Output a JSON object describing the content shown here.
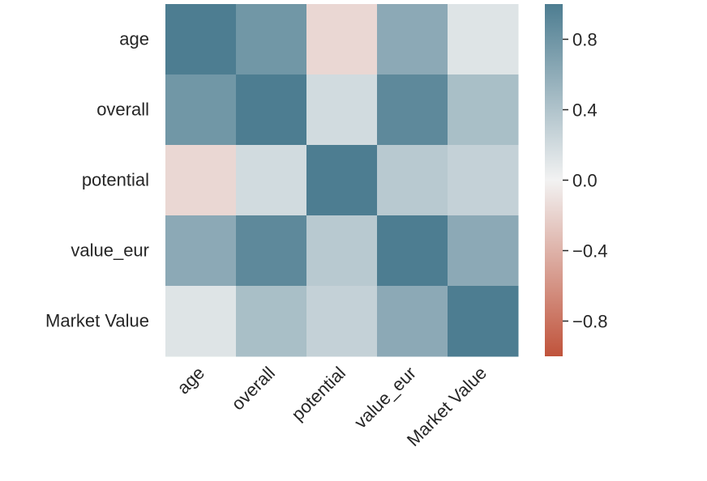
{
  "chart_data": {
    "type": "heatmap",
    "rows": [
      "age",
      "overall",
      "potential",
      "value_eur",
      "Market Value"
    ],
    "columns": [
      "age",
      "overall",
      "potential",
      "value_eur",
      "Market Value"
    ],
    "values": [
      [
        1.0,
        0.78,
        -0.17,
        0.62,
        0.12
      ],
      [
        0.78,
        1.0,
        0.2,
        0.9,
        0.44
      ],
      [
        -0.17,
        0.2,
        1.0,
        0.35,
        0.28
      ],
      [
        0.62,
        0.9,
        0.35,
        1.0,
        0.62
      ],
      [
        0.12,
        0.44,
        0.28,
        0.62,
        1.0
      ]
    ],
    "vmin": -1,
    "vmax": 1,
    "colorbar": {
      "ticks": [
        0.8,
        0.4,
        0.0,
        -0.4,
        -0.8
      ],
      "tick_labels": [
        "0.8",
        "0.4",
        "0.0",
        "−0.4",
        "−0.8"
      ]
    },
    "colormap": {
      "negative": "#c0533b",
      "center": "#f2f2f2",
      "positive": "#4d7d91"
    },
    "x_tick_rotation_deg": 45,
    "grid": false
  }
}
